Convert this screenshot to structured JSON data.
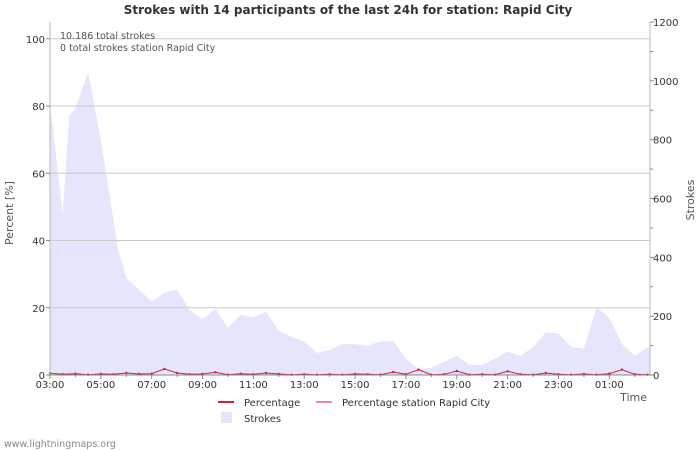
{
  "chart_data": {
    "type": "area",
    "title": "Strokes with 14 participants of the last 24h for station: Rapid City",
    "xlabel": "Time",
    "ylabel_left": "Percent   [%]",
    "ylabel_right": "Strokes",
    "ylim_left": [
      0,
      105
    ],
    "ylim_right": [
      0,
      1200
    ],
    "yticks_left": [
      0,
      20,
      40,
      60,
      80,
      100
    ],
    "yticks_right": [
      0,
      200,
      400,
      600,
      800,
      1000,
      1200
    ],
    "x_range_hours": [
      0,
      23.6
    ],
    "x_ticks": [
      {
        "hour": 0,
        "label": "03:00"
      },
      {
        "hour": 2,
        "label": "05:00"
      },
      {
        "hour": 4,
        "label": "07:00"
      },
      {
        "hour": 6,
        "label": "09:00"
      },
      {
        "hour": 8,
        "label": "11:00"
      },
      {
        "hour": 10,
        "label": "13:00"
      },
      {
        "hour": 12,
        "label": "15:00"
      },
      {
        "hour": 14,
        "label": "17:00"
      },
      {
        "hour": 16,
        "label": "19:00"
      },
      {
        "hour": 18,
        "label": "21:00"
      },
      {
        "hour": 20,
        "label": "23:00"
      },
      {
        "hour": 22,
        "label": "01:00"
      }
    ],
    "annotations": [
      "10.186 total strokes",
      "0 total strokes station Rapid City"
    ],
    "legend": [
      {
        "name": "Percentage",
        "style": "line",
        "color": "#cc2244"
      },
      {
        "name": "Percentage station Rapid City",
        "style": "line",
        "color": "#ee8899"
      },
      {
        "name": "Strokes",
        "style": "area",
        "color": "#e5e5fb"
      }
    ],
    "series": [
      {
        "name": "Strokes",
        "axis": "right",
        "points": [
          [
            0,
            925
          ],
          [
            0.5,
            545
          ],
          [
            0.75,
            880
          ],
          [
            1.0,
            905
          ],
          [
            1.5,
            1030
          ],
          [
            2.0,
            800
          ],
          [
            2.67,
            430
          ],
          [
            3.0,
            330
          ],
          [
            3.5,
            290
          ],
          [
            4.0,
            250
          ],
          [
            4.5,
            280
          ],
          [
            5.0,
            290
          ],
          [
            5.5,
            220
          ],
          [
            6.0,
            190
          ],
          [
            6.5,
            225
          ],
          [
            7.0,
            160
          ],
          [
            7.5,
            205
          ],
          [
            8.0,
            195
          ],
          [
            8.5,
            215
          ],
          [
            9.0,
            150
          ],
          [
            9.5,
            130
          ],
          [
            10.0,
            115
          ],
          [
            10.5,
            75
          ],
          [
            11.0,
            85
          ],
          [
            11.5,
            105
          ],
          [
            12.0,
            105
          ],
          [
            12.5,
            100
          ],
          [
            13.0,
            115
          ],
          [
            13.5,
            115
          ],
          [
            14.0,
            55
          ],
          [
            14.5,
            20
          ],
          [
            15.0,
            25
          ],
          [
            15.5,
            45
          ],
          [
            16.0,
            65
          ],
          [
            16.5,
            35
          ],
          [
            17.0,
            35
          ],
          [
            17.5,
            55
          ],
          [
            18.0,
            80
          ],
          [
            18.5,
            65
          ],
          [
            19.0,
            95
          ],
          [
            19.5,
            145
          ],
          [
            20.0,
            140
          ],
          [
            20.5,
            95
          ],
          [
            21.0,
            90
          ],
          [
            21.5,
            230
          ],
          [
            22.0,
            195
          ],
          [
            22.5,
            105
          ],
          [
            23.0,
            65
          ],
          [
            23.5,
            95
          ]
        ]
      },
      {
        "name": "Percentage",
        "axis": "left",
        "points": [
          [
            0,
            0.5
          ],
          [
            0.5,
            0.2
          ],
          [
            1.0,
            0.4
          ],
          [
            1.5,
            0.1
          ],
          [
            2.0,
            0.3
          ],
          [
            2.5,
            0.2
          ],
          [
            3.0,
            0.6
          ],
          [
            3.5,
            0.3
          ],
          [
            4.0,
            0.4
          ],
          [
            4.5,
            1.8
          ],
          [
            5.0,
            0.6
          ],
          [
            5.5,
            0.2
          ],
          [
            6.0,
            0.3
          ],
          [
            6.5,
            0.8
          ],
          [
            7.0,
            0.1
          ],
          [
            7.5,
            0.4
          ],
          [
            8.0,
            0.2
          ],
          [
            8.5,
            0.6
          ],
          [
            9.0,
            0.3
          ],
          [
            9.5,
            0.1
          ],
          [
            10.0,
            0.2
          ],
          [
            10.5,
            0.1
          ],
          [
            11.0,
            0.2
          ],
          [
            11.5,
            0.1
          ],
          [
            12.0,
            0.3
          ],
          [
            12.5,
            0.2
          ],
          [
            13.0,
            0.1
          ],
          [
            13.5,
            0.9
          ],
          [
            14.0,
            0.2
          ],
          [
            14.5,
            1.6
          ],
          [
            15.0,
            0.1
          ],
          [
            15.5,
            0.2
          ],
          [
            16.0,
            1.2
          ],
          [
            16.5,
            0.1
          ],
          [
            17.0,
            0.2
          ],
          [
            17.5,
            0.1
          ],
          [
            18.0,
            1.1
          ],
          [
            18.5,
            0.2
          ],
          [
            19.0,
            0.1
          ],
          [
            19.5,
            0.6
          ],
          [
            20.0,
            0.2
          ],
          [
            20.5,
            0.1
          ],
          [
            21.0,
            0.3
          ],
          [
            21.5,
            0.1
          ],
          [
            22.0,
            0.4
          ],
          [
            22.5,
            1.6
          ],
          [
            23.0,
            0.2
          ],
          [
            23.5,
            0.1
          ]
        ]
      },
      {
        "name": "Percentage station Rapid City",
        "axis": "left",
        "points": [
          [
            0,
            0
          ],
          [
            23.6,
            0
          ]
        ]
      }
    ]
  },
  "footer": "www.lightningmaps.org"
}
